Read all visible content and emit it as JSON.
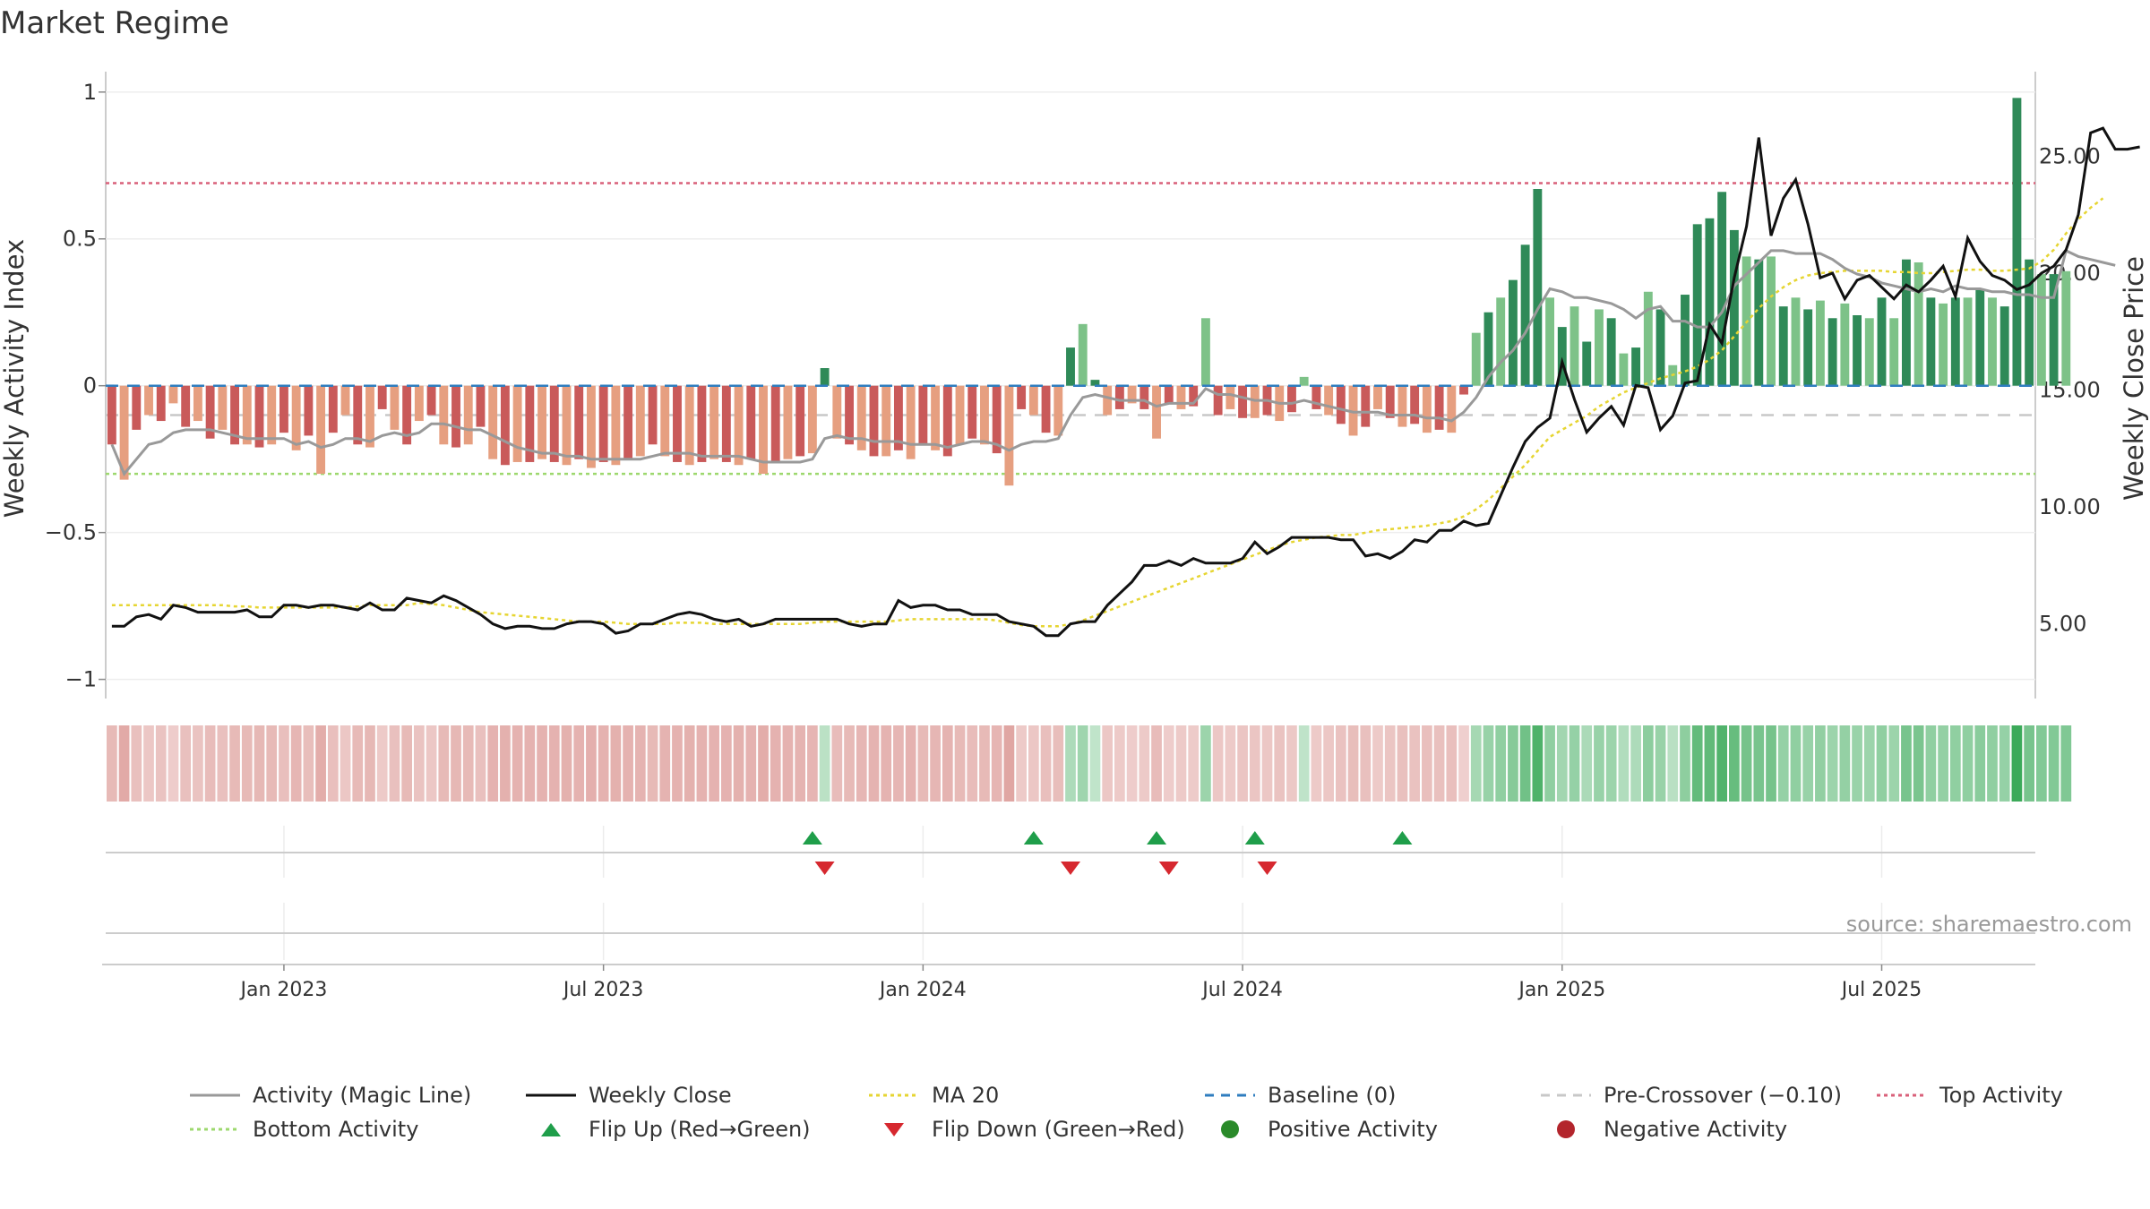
{
  "chart_data": {
    "type": "bar",
    "title": "Market Regime",
    "source": "source: sharemaestro.com",
    "y_left": {
      "label": "Weekly Activity Index",
      "lim": [
        -1.05,
        1.1
      ],
      "ticks": [
        1,
        0.5,
        0,
        -0.5,
        -1
      ],
      "tick_labels": [
        "1",
        "0.5",
        "0",
        "−0.5",
        "−1"
      ]
    },
    "y_right": {
      "label": "Weekly Close Price",
      "lim": [
        2.0,
        29.0
      ],
      "ticks": [
        25,
        20,
        15,
        10,
        5
      ],
      "tick_labels": [
        "25.00",
        "20.00",
        "15.00",
        "10.00",
        "5.00"
      ]
    },
    "x_ticks": [
      {
        "week": 16,
        "label": "Jan 2023"
      },
      {
        "week": 42,
        "label": "Jul 2023"
      },
      {
        "week": 68,
        "label": "Jan 2024"
      },
      {
        "week": 94,
        "label": "Jul 2024"
      },
      {
        "week": 120,
        "label": "Jan 2025"
      },
      {
        "week": 146,
        "label": "Jul 2025"
      }
    ],
    "x_range": [
      1.5,
      158.5
    ],
    "reference_lines": {
      "top_activity": 0.69,
      "bottom_activity": -0.3,
      "pre_crossover": -0.1,
      "baseline": 0
    },
    "activity": [
      -0.2,
      -0.32,
      -0.15,
      -0.1,
      -0.12,
      -0.06,
      -0.14,
      -0.12,
      -0.18,
      -0.15,
      -0.2,
      -0.2,
      -0.21,
      -0.2,
      -0.16,
      -0.22,
      -0.17,
      -0.3,
      -0.16,
      -0.1,
      -0.2,
      -0.21,
      -0.08,
      -0.15,
      -0.2,
      -0.12,
      -0.1,
      -0.2,
      -0.21,
      -0.2,
      -0.14,
      -0.25,
      -0.27,
      -0.26,
      -0.26,
      -0.25,
      -0.26,
      -0.27,
      -0.25,
      -0.28,
      -0.26,
      -0.27,
      -0.25,
      -0.24,
      -0.2,
      -0.24,
      -0.26,
      -0.27,
      -0.26,
      -0.25,
      -0.26,
      -0.27,
      -0.25,
      -0.3,
      -0.26,
      -0.25,
      -0.24,
      -0.23,
      0.06,
      -0.18,
      -0.2,
      -0.22,
      -0.24,
      -0.24,
      -0.22,
      -0.25,
      -0.2,
      -0.22,
      -0.24,
      -0.2,
      -0.18,
      -0.2,
      -0.23,
      -0.34,
      -0.08,
      -0.1,
      -0.16,
      -0.17,
      0.13,
      0.21,
      0.02,
      -0.1,
      -0.08,
      -0.06,
      -0.08,
      -0.18,
      -0.06,
      -0.08,
      -0.07,
      0.23,
      -0.1,
      -0.08,
      -0.11,
      -0.11,
      -0.1,
      -0.12,
      -0.09,
      0.03,
      -0.08,
      -0.1,
      -0.13,
      -0.17,
      -0.14,
      -0.08,
      -0.11,
      -0.14,
      -0.13,
      -0.16,
      -0.15,
      -0.16,
      -0.03,
      0.18,
      0.25,
      0.3,
      0.36,
      0.48,
      0.67,
      0.3,
      0.2,
      0.27,
      0.15,
      0.26,
      0.23,
      0.11,
      0.13,
      0.32,
      0.26,
      0.07,
      0.31,
      0.55,
      0.57,
      0.66,
      0.53,
      0.44,
      0.43,
      0.44,
      0.27,
      0.3,
      0.26,
      0.29,
      0.23,
      0.28,
      0.24,
      0.23,
      0.3,
      0.23,
      0.43,
      0.42,
      0.3,
      0.28,
      0.3,
      0.3,
      0.33,
      0.3,
      0.27,
      0.98,
      0.43,
      0.38,
      0.38,
      0.39
    ],
    "close": [
      4.9,
      4.9,
      5.3,
      5.4,
      5.2,
      5.8,
      5.7,
      5.5,
      5.5,
      5.5,
      5.5,
      5.6,
      5.3,
      5.3,
      5.8,
      5.8,
      5.7,
      5.8,
      5.8,
      5.7,
      5.6,
      5.9,
      5.6,
      5.6,
      6.1,
      6.0,
      5.9,
      6.2,
      6.0,
      5.7,
      5.4,
      5.0,
      4.8,
      4.9,
      4.9,
      4.8,
      4.8,
      5.0,
      5.1,
      5.1,
      5.0,
      4.6,
      4.7,
      5.0,
      5.0,
      5.2,
      5.4,
      5.5,
      5.4,
      5.2,
      5.1,
      5.2,
      4.9,
      5.0,
      5.2,
      5.2,
      5.2,
      5.2,
      5.2,
      5.2,
      5.0,
      4.9,
      5.0,
      5.0,
      6.0,
      5.7,
      5.8,
      5.8,
      5.6,
      5.6,
      5.4,
      5.4,
      5.4,
      5.1,
      5.0,
      4.9,
      4.5,
      4.5,
      5.0,
      5.1,
      5.1,
      5.8,
      6.3,
      6.8,
      7.5,
      7.5,
      7.7,
      7.5,
      7.8,
      7.6,
      7.6,
      7.6,
      7.8,
      8.5,
      8.0,
      8.3,
      8.7,
      8.7,
      8.7,
      8.7,
      8.6,
      8.6,
      7.9,
      8.0,
      7.8,
      8.1,
      8.6,
      8.5,
      9.0,
      9.0,
      9.4,
      9.2,
      9.3,
      10.5,
      11.7,
      12.8,
      13.4,
      13.8,
      16.2,
      14.6,
      13.2,
      13.8,
      14.3,
      13.5,
      15.2,
      15.1,
      13.3,
      13.9,
      15.3,
      15.4,
      17.8,
      17.0,
      19.8,
      22.0,
      25.8,
      21.6,
      23.2,
      24.0,
      22.1,
      19.8,
      20.0,
      18.9,
      19.7,
      19.9,
      19.4,
      18.9,
      19.5,
      19.2,
      19.7,
      20.3,
      19.0,
      21.5,
      20.5,
      19.9,
      19.7,
      19.3,
      19.5,
      20.0,
      20.3,
      21.0,
      22.5,
      26.0,
      26.2,
      25.3,
      25.3,
      25.4
    ],
    "magic_line": [
      -0.2,
      -0.3,
      -0.25,
      -0.2,
      -0.19,
      -0.16,
      -0.15,
      -0.15,
      -0.15,
      -0.16,
      -0.17,
      -0.18,
      -0.18,
      -0.18,
      -0.18,
      -0.2,
      -0.19,
      -0.21,
      -0.2,
      -0.18,
      -0.18,
      -0.19,
      -0.17,
      -0.16,
      -0.17,
      -0.16,
      -0.13,
      -0.13,
      -0.14,
      -0.15,
      -0.15,
      -0.17,
      -0.19,
      -0.21,
      -0.22,
      -0.23,
      -0.23,
      -0.24,
      -0.24,
      -0.25,
      -0.25,
      -0.25,
      -0.25,
      -0.25,
      -0.24,
      -0.23,
      -0.23,
      -0.23,
      -0.24,
      -0.24,
      -0.24,
      -0.24,
      -0.25,
      -0.26,
      -0.26,
      -0.26,
      -0.26,
      -0.25,
      -0.18,
      -0.17,
      -0.18,
      -0.18,
      -0.19,
      -0.19,
      -0.19,
      -0.2,
      -0.2,
      -0.2,
      -0.21,
      -0.2,
      -0.19,
      -0.19,
      -0.2,
      -0.22,
      -0.2,
      -0.19,
      -0.19,
      -0.18,
      -0.1,
      -0.04,
      -0.03,
      -0.04,
      -0.05,
      -0.05,
      -0.05,
      -0.07,
      -0.06,
      -0.06,
      -0.06,
      -0.01,
      -0.03,
      -0.03,
      -0.04,
      -0.05,
      -0.05,
      -0.06,
      -0.06,
      -0.05,
      -0.06,
      -0.07,
      -0.08,
      -0.09,
      -0.09,
      -0.09,
      -0.1,
      -0.1,
      -0.1,
      -0.11,
      -0.11,
      -0.12,
      -0.09,
      -0.04,
      0.03,
      0.08,
      0.12,
      0.18,
      0.26,
      0.33,
      0.32,
      0.3,
      0.3,
      0.29,
      0.28,
      0.26,
      0.23,
      0.26,
      0.27,
      0.22,
      0.22,
      0.2,
      0.2,
      0.25,
      0.34,
      0.38,
      0.42,
      0.46,
      0.46,
      0.45,
      0.45,
      0.45,
      0.43,
      0.4,
      0.38,
      0.37,
      0.35,
      0.34,
      0.33,
      0.32,
      0.33,
      0.32,
      0.34,
      0.33,
      0.33,
      0.32,
      0.32,
      0.31,
      0.31,
      0.3,
      0.3,
      0.46,
      0.44,
      0.43,
      0.42,
      0.41
    ],
    "ma20": [
      5.8,
      5.8,
      5.8,
      5.8,
      5.8,
      5.8,
      5.8,
      5.8,
      5.8,
      5.8,
      5.75,
      5.75,
      5.7,
      5.7,
      5.7,
      5.7,
      5.7,
      5.7,
      5.7,
      5.7,
      5.75,
      5.8,
      5.8,
      5.8,
      5.8,
      5.9,
      5.85,
      5.8,
      5.7,
      5.6,
      5.5,
      5.45,
      5.4,
      5.35,
      5.3,
      5.25,
      5.2,
      5.15,
      5.1,
      5.1,
      5.1,
      5.05,
      5.0,
      5.0,
      5.0,
      5.0,
      5.05,
      5.05,
      5.05,
      5.0,
      5.0,
      5.0,
      5.0,
      5.0,
      5.0,
      5.0,
      5.0,
      5.05,
      5.1,
      5.1,
      5.1,
      5.1,
      5.1,
      5.1,
      5.15,
      5.2,
      5.2,
      5.2,
      5.2,
      5.2,
      5.2,
      5.2,
      5.15,
      5.05,
      4.95,
      4.9,
      4.9,
      4.9,
      5.0,
      5.15,
      5.35,
      5.55,
      5.75,
      5.95,
      6.15,
      6.35,
      6.55,
      6.75,
      6.95,
      7.15,
      7.35,
      7.55,
      7.75,
      7.95,
      8.15,
      8.35,
      8.5,
      8.6,
      8.7,
      8.75,
      8.8,
      8.8,
      8.9,
      9.0,
      9.05,
      9.1,
      9.15,
      9.2,
      9.3,
      9.4,
      9.6,
      9.9,
      10.3,
      10.8,
      11.3,
      11.8,
      12.4,
      13.0,
      13.3,
      13.6,
      13.9,
      14.3,
      14.6,
      14.9,
      15.1,
      15.3,
      15.5,
      15.65,
      15.8,
      16.0,
      16.3,
      16.7,
      17.3,
      17.9,
      18.5,
      19.0,
      19.4,
      19.7,
      19.9,
      20.0,
      20.05,
      20.1,
      20.1,
      20.1,
      20.1,
      20.05,
      20.05,
      20.0,
      20.0,
      20.05,
      20.1,
      20.15,
      20.15,
      20.1,
      20.1,
      20.15,
      20.2,
      20.5,
      21.0,
      21.7,
      22.3,
      22.8,
      23.2
    ],
    "flips_up": [
      59,
      77,
      87,
      95,
      107
    ],
    "flips_down": [
      60,
      80,
      88,
      96
    ]
  },
  "legend": [
    {
      "label": "Activity (Magic Line)",
      "kind": "line",
      "color": "#999999",
      "dash": ""
    },
    {
      "label": "Weekly Close",
      "kind": "line",
      "color": "#111111",
      "dash": ""
    },
    {
      "label": "MA 20",
      "kind": "line",
      "color": "#e6d532",
      "dash": "4 4"
    },
    {
      "label": "Baseline (0)",
      "kind": "line",
      "color": "#2f7dbf",
      "dash": "10 8"
    },
    {
      "label": "Pre-Crossover (−0.10)",
      "kind": "line",
      "color": "#c8c8c8",
      "dash": "10 8"
    },
    {
      "label": "Top Activity",
      "kind": "line",
      "color": "#d9607a",
      "dash": "4 4"
    },
    {
      "label": "Bottom Activity",
      "kind": "line",
      "color": "#9dd86e",
      "dash": "4 4"
    },
    {
      "label": "Flip Up (Red→Green)",
      "kind": "tri-up",
      "color": "#1f9e4a",
      "dash": ""
    },
    {
      "label": "Flip Down (Green→Red)",
      "kind": "tri-down",
      "color": "#d6282f",
      "dash": ""
    },
    {
      "label": "Positive Activity",
      "kind": "dot",
      "color": "#2a8a2a",
      "dash": ""
    },
    {
      "label": "Negative Activity",
      "kind": "dot",
      "color": "#b3252c",
      "dash": ""
    }
  ]
}
